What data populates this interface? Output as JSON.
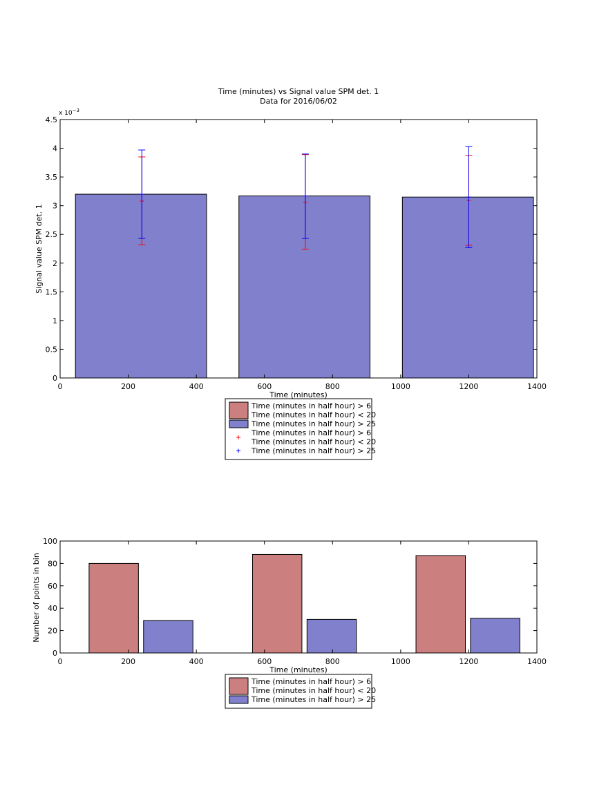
{
  "chart_data": [
    {
      "type": "bar",
      "title": "Time (minutes) vs Signal value SPM det. 1",
      "subtitle": "Data for 2016/06/02",
      "xlabel": "Time (minutes)",
      "ylabel": "Signal value SPM det. 1",
      "yexponent": "x 10",
      "yexponent_power": "−3",
      "xlim": [
        0,
        1400
      ],
      "ylim": [
        0,
        4.5
      ],
      "xticks": [
        "0",
        "200",
        "400",
        "600",
        "800",
        "1000",
        "1200",
        "1400"
      ],
      "yticks": [
        "0",
        "0.5",
        "1",
        "1.5",
        "2",
        "2.5",
        "3",
        "3.5",
        "4",
        "4.5"
      ],
      "grid": false,
      "legend_placement": "below",
      "bars": [
        {
          "x_start": 45,
          "x_end": 430,
          "value": 3.2
        },
        {
          "x_start": 525,
          "x_end": 910,
          "value": 3.17
        },
        {
          "x_start": 1005,
          "x_end": 1390,
          "value": 3.15
        }
      ],
      "errorbars": [
        {
          "x": 240,
          "series": "red",
          "mean": 3.08,
          "low": 2.32,
          "high": 3.85
        },
        {
          "x": 240,
          "series": "blue",
          "mean": 3.2,
          "low": 2.43,
          "high": 3.97
        },
        {
          "x": 720,
          "series": "red",
          "mean": 3.06,
          "low": 2.24,
          "high": 3.89
        },
        {
          "x": 720,
          "series": "blue",
          "mean": 3.17,
          "low": 2.43,
          "high": 3.9
        },
        {
          "x": 1200,
          "series": "red",
          "mean": 3.09,
          "low": 2.31,
          "high": 3.87
        },
        {
          "x": 1200,
          "series": "blue",
          "mean": 3.15,
          "low": 2.27,
          "high": 4.03
        }
      ],
      "legend": [
        {
          "kind": "patch",
          "color": "#cc7f7f",
          "lines": [
            "Time (minutes in half hour) > 6",
            "Time (minutes in half hour) < 20"
          ]
        },
        {
          "kind": "patch",
          "color": "#8080cc",
          "lines": [
            "Time (minutes in half hour) > 25"
          ]
        },
        {
          "kind": "marker",
          "color": "#ff0000",
          "lines": [
            "Time (minutes in half hour) > 6",
            "Time (minutes in half hour) < 20"
          ]
        },
        {
          "kind": "marker",
          "color": "#0000ff",
          "lines": [
            "Time (minutes in half hour) > 25"
          ]
        }
      ]
    },
    {
      "type": "bar",
      "xlabel": "Time (minutes)",
      "ylabel": "Number of points in bin",
      "xlim": [
        0,
        1400
      ],
      "ylim": [
        0,
        100
      ],
      "xticks": [
        "0",
        "200",
        "400",
        "600",
        "800",
        "1000",
        "1200",
        "1400"
      ],
      "yticks": [
        "0",
        "20",
        "40",
        "60",
        "80",
        "100"
      ],
      "grid": false,
      "legend_placement": "below",
      "bars": [
        {
          "x_start": 85,
          "x_end": 230,
          "value": 80,
          "color": "#cc7f7f"
        },
        {
          "x_start": 245,
          "x_end": 390,
          "value": 29,
          "color": "#8080cc"
        },
        {
          "x_start": 565,
          "x_end": 710,
          "value": 88,
          "color": "#cc7f7f"
        },
        {
          "x_start": 725,
          "x_end": 870,
          "value": 30,
          "color": "#8080cc"
        },
        {
          "x_start": 1045,
          "x_end": 1190,
          "value": 87,
          "color": "#cc7f7f"
        },
        {
          "x_start": 1205,
          "x_end": 1350,
          "value": 31,
          "color": "#8080cc"
        }
      ],
      "legend": [
        {
          "kind": "patch",
          "color": "#cc7f7f",
          "lines": [
            "Time (minutes in half hour) > 6",
            "Time (minutes in half hour) < 20"
          ]
        },
        {
          "kind": "patch",
          "color": "#8080cc",
          "lines": [
            "Time (minutes in half hour) > 25"
          ]
        }
      ]
    }
  ],
  "colors": {
    "bar_blue": "#8080cc",
    "bar_red": "#cc7f7f",
    "err_red": "#ff0000",
    "err_blue": "#0000ff"
  }
}
